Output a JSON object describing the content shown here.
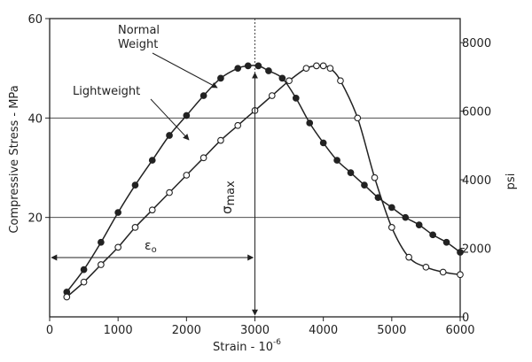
{
  "chart_data": {
    "type": "line",
    "xlabel": "Strain - 10",
    "xlabel_exp": "-6",
    "ylabel_left": "Compressive Stress - MPa",
    "ylabel_right": "psi",
    "xlim": [
      0,
      6000
    ],
    "ylim": [
      0,
      60
    ],
    "ylim_right": [
      0,
      8702
    ],
    "x_ticks": [
      "0",
      "1000",
      "2000",
      "3000",
      "4000",
      "5000",
      "6000"
    ],
    "y_ticks_left": [
      "20",
      "40",
      "60"
    ],
    "y_ticks_right": [
      "0",
      "2000",
      "4000",
      "6000",
      "8000"
    ],
    "grid": "horizontal",
    "series": [
      {
        "name": "Normal Weight",
        "marker": "filled",
        "x": [
          250,
          500,
          750,
          1000,
          1250,
          1500,
          1750,
          2000,
          2250,
          2500,
          2750,
          2900,
          3050,
          3200,
          3400,
          3600,
          3800,
          4000,
          4200,
          4400,
          4600,
          4800,
          5000,
          5200,
          5400,
          5600,
          5800,
          6000
        ],
        "y": [
          5,
          9.5,
          15,
          21,
          26.5,
          31.5,
          36.5,
          40.5,
          44.5,
          48,
          50,
          50.5,
          50.5,
          49.5,
          48,
          44,
          39,
          35,
          31.5,
          29,
          26.5,
          24,
          22,
          20,
          18.5,
          16.5,
          15,
          13
        ]
      },
      {
        "name": "Lightweight",
        "marker": "open",
        "x": [
          250,
          500,
          750,
          1000,
          1250,
          1500,
          1750,
          2000,
          2250,
          2500,
          2750,
          3000,
          3250,
          3500,
          3750,
          3900,
          4000,
          4100,
          4250,
          4500,
          4750,
          5000,
          5250,
          5500,
          5750,
          6000
        ],
        "y": [
          4,
          7,
          10.5,
          14,
          18,
          21.5,
          25,
          28.5,
          32,
          35.5,
          38.5,
          41.5,
          44.5,
          47.5,
          50,
          50.5,
          50.5,
          50,
          47.5,
          40,
          28,
          18,
          12,
          10,
          9,
          8.5
        ]
      }
    ],
    "annotations": {
      "normal_label_line1": "Normal",
      "normal_label_line2": "Weight",
      "light_label": "Lightweight",
      "sigma_symbol": "σ",
      "sigma_sub": "max",
      "eps_label": "ε",
      "eps_sub": "o"
    }
  }
}
